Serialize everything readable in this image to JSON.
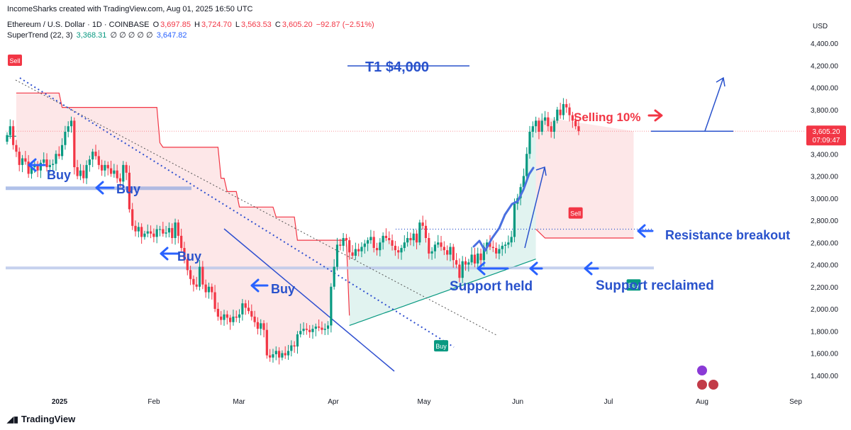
{
  "header": {
    "publisher": "IncomeSharks created with TradingView.com, Aug 01, 2025 16:50 UTC",
    "symbol": "Ethereum / U.S. Dollar · 1D · COINBASE",
    "o_label": "O",
    "o_value": "3,697.85",
    "h_label": "H",
    "h_value": "3,724.70",
    "l_label": "L",
    "l_value": "3,563.53",
    "c_label": "C",
    "c_value": "3,605.20",
    "change": "−92.87 (−2.51%)",
    "indicator": "SuperTrend (22, 3)",
    "ind_v1": "3,368.31",
    "ind_zeros": "∅ ∅ ∅ ∅ ∅",
    "ind_v2": "3,647.82"
  },
  "footer": {
    "brand": "TradingView"
  },
  "colors": {
    "up": "#089981",
    "down": "#f23645",
    "annotation": "#2962ff",
    "bg": "#ffffff"
  },
  "chart_data": {
    "type": "candlestick",
    "currency_label": "USD",
    "y_ticks": [
      "4,400.00",
      "4,200.00",
      "4,000.00",
      "3,800.00",
      "3,600.00",
      "3,400.00",
      "3,200.00",
      "3,000.00",
      "2,800.00",
      "2,600.00",
      "2,400.00",
      "2,200.00",
      "2,000.00",
      "1,800.00",
      "1,600.00",
      "1,400.00"
    ],
    "ylim": [
      1280,
      4600
    ],
    "x_ticks": [
      "2025",
      "Feb",
      "Mar",
      "Apr",
      "May",
      "Jun",
      "Jul",
      "Aug",
      "Sep"
    ],
    "last_price_label": "3,605.20",
    "countdown_label": "07:09:47",
    "closes": [
      3570,
      3650,
      3480,
      3420,
      3300,
      3360,
      3330,
      3220,
      3280,
      3300,
      3250,
      3320,
      3350,
      3280,
      3300,
      3310,
      3400,
      3380,
      3480,
      3600,
      3650,
      3700,
      3280,
      3200,
      3250,
      3180,
      3300,
      3350,
      3420,
      3380,
      3300,
      3250,
      3300,
      3270,
      3220,
      3250,
      3180,
      3150,
      3300,
      3230,
      2900,
      2750,
      2700,
      2740,
      2650,
      2680,
      2700,
      2680,
      2650,
      2720,
      2720,
      2680,
      2690,
      2730,
      2640,
      2780,
      2660,
      2550,
      2450,
      2350,
      2270,
      2220,
      2200,
      2380,
      2220,
      2150,
      2200,
      2150,
      2000,
      1930,
      1900,
      1950,
      1920,
      1880,
      1930,
      1920,
      1950,
      2050,
      2010,
      1980,
      1930,
      1880,
      1820,
      1870,
      1810,
      1580,
      1560,
      1590,
      1620,
      1560,
      1600,
      1580,
      1620,
      1670,
      1660,
      1770,
      1800,
      1820,
      1810,
      1790,
      1820,
      1840,
      1830,
      1810,
      1820,
      1850,
      2200,
      2380,
      2580,
      2570,
      2640,
      2620,
      2510,
      2480,
      2540,
      2520,
      2560,
      2590,
      2620,
      2650,
      2550,
      2530,
      2600,
      2660,
      2640,
      2620,
      2570,
      2530,
      2510,
      2550,
      2600,
      2640,
      2620,
      2680,
      2600,
      2780,
      2750,
      2640,
      2500,
      2520,
      2580,
      2600,
      2560,
      2530,
      2490,
      2560,
      2440,
      2400,
      2280,
      2430,
      2400,
      2420,
      2490,
      2410,
      2500,
      2440,
      2560,
      2600,
      2560,
      2550,
      2500,
      2540,
      2570,
      2580,
      2600,
      2650,
      2950,
      3000,
      3100,
      3200,
      3400,
      3600,
      3650,
      3700,
      3600,
      3700,
      3730,
      3650,
      3600,
      3700,
      3800,
      3750,
      3850,
      3820,
      3750,
      3700,
      3650,
      3605.2
    ],
    "supertrend": [
      {
        "from": "2024-12-17",
        "to": "2025-01-07",
        "level": "lower",
        "value": 3560
      },
      {
        "from": "2025-01-07",
        "to": "2025-05-08",
        "level": "upper",
        "value": "stepping down 3950 to 1940"
      },
      {
        "from": "2025-05-08",
        "to": "2025-06-22",
        "level": "lower",
        "value": "rising 1850 to 2450"
      },
      {
        "from": "2025-06-22",
        "to": "2025-07-10",
        "level": "upper",
        "value": 2640
      },
      {
        "from": "2025-07-10",
        "to": "2025-08-01",
        "level": "lower",
        "value": "rising 2330 to 3368.31"
      }
    ],
    "signals": [
      {
        "label": "Sell",
        "date": "2024-12-17"
      },
      {
        "label": "Buy",
        "date": "2025-05-08"
      },
      {
        "label": "Sell",
        "date": "2025-06-22"
      },
      {
        "label": "Buy",
        "date": "2025-07-10"
      }
    ],
    "horizontal_levels": [
      3090,
      2370,
      2370,
      2720,
      3605.2
    ],
    "annotations": {
      "target": "T1 $4,000",
      "buy1": "Buy",
      "buy2": "Buy",
      "buy3": "Buy",
      "buy4": "Buy",
      "support_held": "Support held",
      "support_reclaimed": "Support reclaimed",
      "resistance_breakout": "Resistance breakout",
      "selling": "Selling 10%"
    }
  }
}
